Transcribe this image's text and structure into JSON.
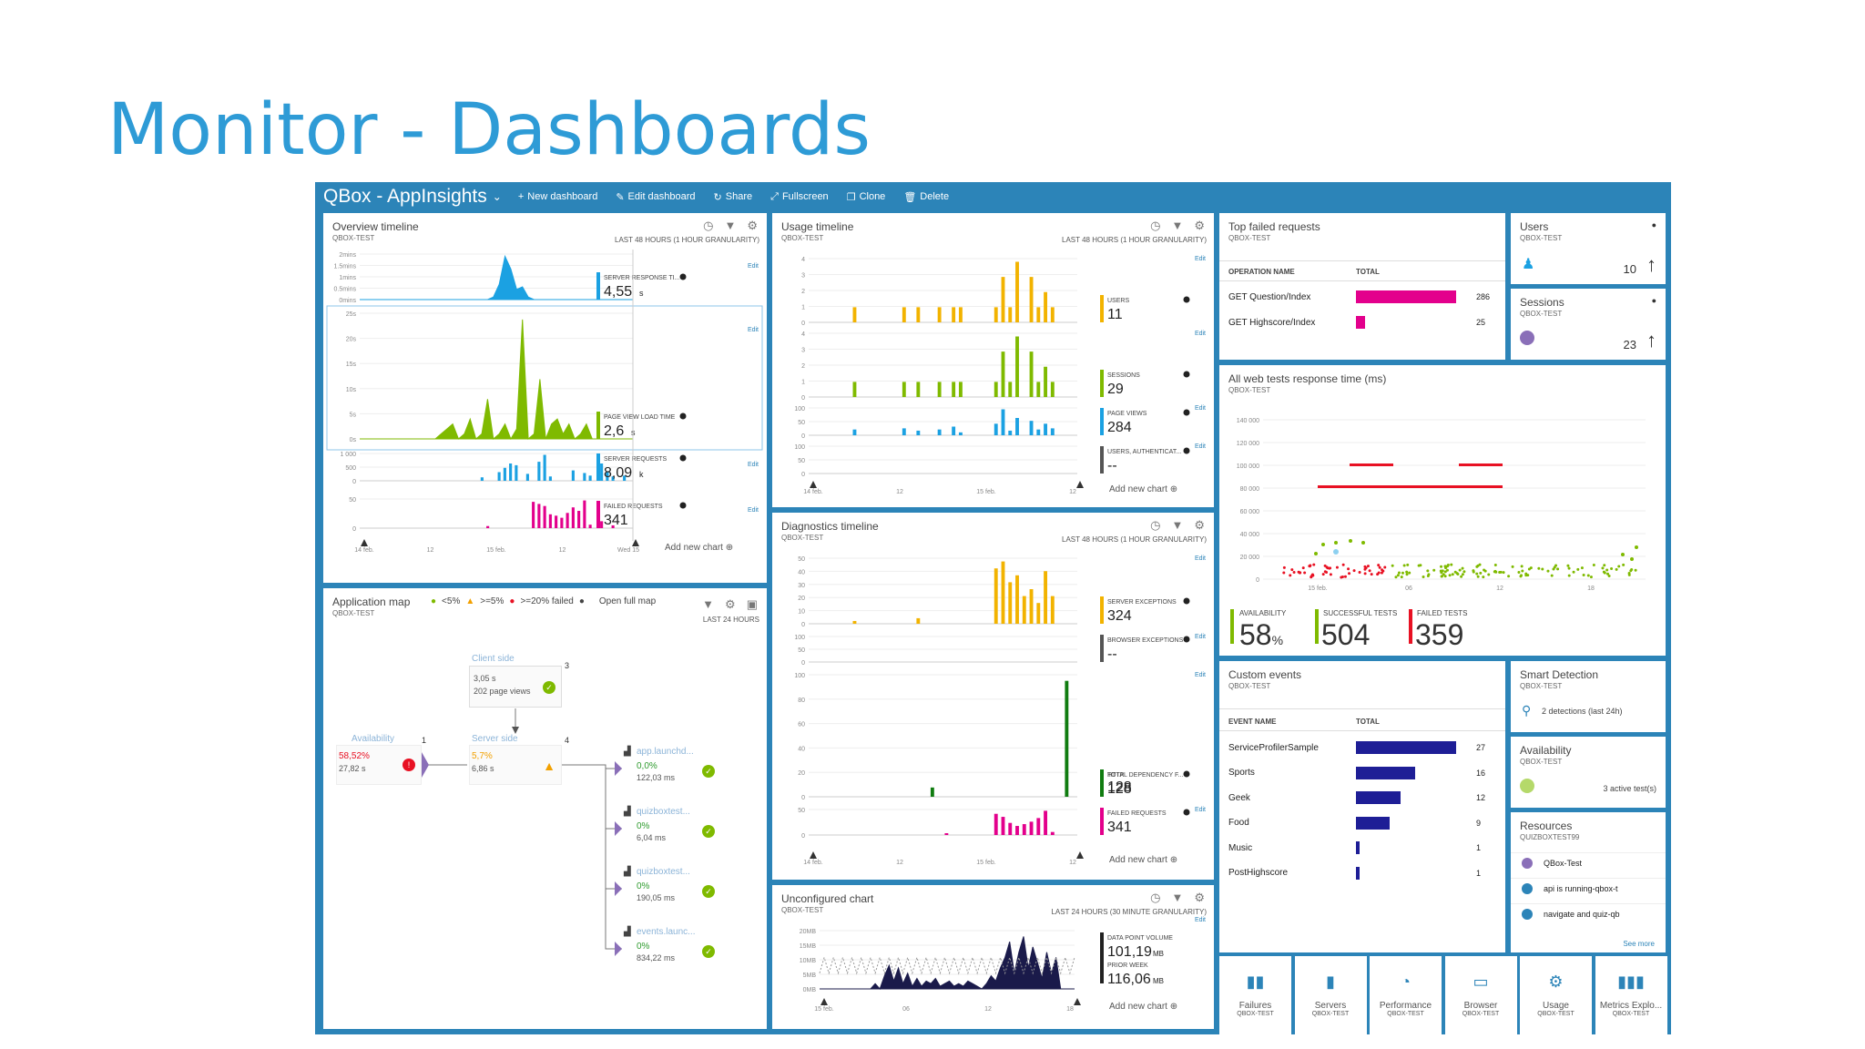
{
  "slide_title": "Monitor - Dashboards",
  "topbar": {
    "title": "QBox - AppInsights",
    "actions": [
      {
        "icon": "plus-icon",
        "label": "New dashboard"
      },
      {
        "icon": "pencil-icon",
        "label": "Edit dashboard"
      },
      {
        "icon": "share-icon",
        "label": "Share"
      },
      {
        "icon": "fullscreen-icon",
        "label": "Fullscreen"
      },
      {
        "icon": "clone-icon",
        "label": "Clone"
      },
      {
        "icon": "trash-icon",
        "label": "Delete"
      }
    ]
  },
  "colors": {
    "accent": "#2c84b8",
    "cyan": "#1ba1e2",
    "green": "#7fba00",
    "pink": "#e3008c",
    "gold": "#f2b300",
    "darkgreen": "#107c10",
    "navy": "#1e1e96",
    "red": "#e81123"
  },
  "overview": {
    "title": "Overview timeline",
    "subtitle": "QBOX-TEST",
    "range": "LAST 48 HOURS (1 HOUR GRANULARITY)",
    "edit": "Edit",
    "add_chart": "Add new chart",
    "charts": [
      {
        "ticks": [
          "2mins",
          "1.5mins",
          "1mins",
          "0.5mins",
          "0mins"
        ],
        "metric": "SERVER RESPONSE TI...",
        "value": "4,55",
        "unit": "s",
        "color": "#1ba1e2",
        "type": "area",
        "values": [
          0,
          0,
          0,
          0,
          0,
          0,
          0,
          0,
          0,
          0,
          0,
          0,
          0,
          0,
          0,
          0,
          0,
          0,
          0,
          0,
          0,
          0,
          0,
          0.1,
          0.6,
          1.7,
          1.2,
          0.4,
          0.5,
          0.1,
          0,
          0,
          0,
          0,
          0,
          0,
          0,
          0,
          0,
          0,
          0,
          0,
          0,
          0,
          0,
          0,
          0,
          0
        ]
      },
      {
        "ticks": [
          "25s",
          "20s",
          "15s",
          "10s",
          "5s",
          "0s"
        ],
        "metric": "PAGE VIEW LOAD TIME",
        "value": "2,6",
        "unit": "s",
        "color": "#7fba00",
        "type": "area",
        "values": [
          0,
          0,
          0,
          0,
          0,
          0,
          0,
          0,
          0,
          0,
          0,
          0,
          0,
          0,
          1,
          2,
          3,
          0,
          1,
          4,
          0,
          1,
          8,
          0,
          1,
          3,
          0,
          2,
          24,
          0,
          1,
          12,
          0,
          3,
          4,
          1,
          3,
          0,
          1,
          3,
          0,
          0,
          0,
          0,
          0,
          0,
          0,
          0
        ]
      },
      {
        "ticks": [
          "1 000",
          "500",
          "0"
        ],
        "metric": "SERVER REQUESTS",
        "value": "8,09",
        "unit": "k",
        "color": "#1ba1e2",
        "type": "bar",
        "values": [
          0,
          0,
          0,
          0,
          0,
          0,
          0,
          0,
          0,
          0,
          0,
          0,
          0,
          0,
          0,
          0,
          0,
          0,
          0,
          0,
          0,
          40,
          0,
          0,
          100,
          150,
          200,
          180,
          0,
          80,
          0,
          220,
          300,
          50,
          0,
          0,
          0,
          120,
          0,
          90,
          60,
          0,
          200,
          100,
          50,
          0,
          60,
          0
        ]
      },
      {
        "ticks": [
          "50",
          "0"
        ],
        "metric": "FAILED REQUESTS",
        "value": "341",
        "unit": "",
        "color": "#e3008c",
        "type": "bar",
        "values": [
          0,
          0,
          0,
          0,
          0,
          0,
          0,
          0,
          0,
          0,
          0,
          0,
          0,
          0,
          0,
          0,
          0,
          0,
          0,
          0,
          0,
          0,
          3,
          0,
          0,
          0,
          0,
          0,
          0,
          0,
          38,
          35,
          32,
          20,
          18,
          15,
          22,
          30,
          25,
          40,
          5,
          0,
          10,
          0,
          4,
          0,
          0,
          0
        ]
      }
    ],
    "xaxis": [
      "14 feb.",
      "12",
      "15 feb.",
      "12",
      "Wed 15"
    ]
  },
  "usage": {
    "title": "Usage timeline",
    "subtitle": "QBOX-TEST",
    "range": "LAST 48 HOURS (1 HOUR GRANULARITY)",
    "edit": "Edit",
    "add_chart": "Add new chart",
    "charts": [
      {
        "ticks": [
          "4",
          "3",
          "2",
          "1",
          "0"
        ],
        "metric": "USERS",
        "value": "11",
        "unit": "",
        "color": "#f2b300",
        "values": [
          0,
          0,
          0,
          0,
          0,
          0,
          1,
          0,
          0,
          0,
          0,
          0,
          0,
          1,
          0,
          1,
          0,
          0,
          1,
          0,
          1,
          1,
          0,
          0,
          0,
          0,
          1,
          3,
          1,
          4,
          0,
          3,
          1,
          2,
          1,
          0,
          0,
          0
        ]
      },
      {
        "ticks": [
          "4",
          "3",
          "2",
          "1",
          "0"
        ],
        "metric": "SESSIONS",
        "value": "29",
        "unit": "",
        "color": "#7fba00",
        "values": [
          0,
          0,
          0,
          0,
          0,
          0,
          1,
          0,
          0,
          0,
          0,
          0,
          0,
          1,
          0,
          1,
          0,
          0,
          1,
          0,
          1,
          1,
          0,
          0,
          0,
          0,
          1,
          3,
          1,
          4,
          0,
          3,
          1,
          2,
          1,
          0,
          0,
          0
        ]
      },
      {
        "ticks": [
          "100",
          "50",
          "0"
        ],
        "metric": "PAGE VIEWS",
        "value": "284",
        "unit": "",
        "color": "#1ba1e2",
        "values": [
          0,
          0,
          0,
          0,
          0,
          0,
          10,
          0,
          0,
          0,
          0,
          0,
          0,
          12,
          0,
          8,
          0,
          0,
          10,
          0,
          15,
          5,
          0,
          0,
          0,
          0,
          20,
          45,
          8,
          30,
          0,
          25,
          10,
          20,
          12,
          0,
          0,
          0
        ]
      },
      {
        "ticks": [
          "100",
          "50",
          "0"
        ],
        "metric": "USERS, AUTHENTICAT...",
        "value": "--",
        "unit": "",
        "color": "#555555",
        "values": []
      }
    ],
    "xaxis": [
      "14 feb.",
      "12",
      "15 feb.",
      "12"
    ]
  },
  "top_failed": {
    "title": "Top failed requests",
    "subtitle": "QBOX-TEST",
    "col1": "OPERATION NAME",
    "col2": "TOTAL",
    "rows": [
      {
        "name": "GET Question/Index",
        "total": "286",
        "value": 286
      },
      {
        "name": "GET Highscore/Index",
        "total": "25",
        "value": 25
      }
    ]
  },
  "users_tile": {
    "title": "Users",
    "subtitle": "QBOX-TEST",
    "value": "10"
  },
  "sessions_tile": {
    "title": "Sessions",
    "subtitle": "QBOX-TEST",
    "value": "23"
  },
  "webtests": {
    "title": "All web tests response time (ms)",
    "subtitle": "QBOX-TEST",
    "ticks": [
      "140 000",
      "120 000",
      "100 000",
      "80 000",
      "60 000",
      "40 000",
      "20 000",
      "0"
    ],
    "xaxis": [
      "15 feb.",
      "06",
      "12",
      "18"
    ],
    "availability_label": "AVAILABILITY",
    "availability": "58",
    "availability_unit": "%",
    "successful_label": "SUCCESSFUL TESTS",
    "successful": "504",
    "failed_label": "FAILED TESTS",
    "failed": "359"
  },
  "appmap": {
    "title": "Application map",
    "subtitle": "QBOX-TEST",
    "legend": [
      "<5%",
      ">=5%",
      ">=20% failed"
    ],
    "open_full": "Open full map",
    "range": "LAST 24 HOURS",
    "client": {
      "label": "Client side",
      "l1": "3,05 s",
      "l2": "202 page views"
    },
    "availability": {
      "label": "Availability",
      "l1": "58,52%",
      "l2": "27,82 s"
    },
    "server": {
      "label": "Server side",
      "l1": "5,7%",
      "l2": "6,86 s"
    },
    "deps": [
      {
        "label": "app.launchd...",
        "l1": "0,0%",
        "l2": "122,03 ms"
      },
      {
        "label": "quizboxtest...",
        "l1": "0%",
        "l2": "6,04 ms"
      },
      {
        "label": "quizboxtest...",
        "l1": "0%",
        "l2": "190,05 ms"
      },
      {
        "label": "events.launc...",
        "l1": "0%",
        "l2": "834,22 ms"
      }
    ],
    "counts": [
      "1",
      "3",
      "4"
    ]
  },
  "diagnostics": {
    "title": "Diagnostics timeline",
    "subtitle": "QBOX-TEST",
    "range": "LAST 48 HOURS (1 HOUR GRANULARITY)",
    "edit": "Edit",
    "add_chart": "Add new chart",
    "charts": [
      {
        "ticks": [
          "50",
          "40",
          "30",
          "20",
          "10",
          "0"
        ],
        "metric": "SERVER EXCEPTIONS",
        "value": "324",
        "unit": "",
        "color": "#f2b300",
        "values": [
          0,
          0,
          0,
          0,
          0,
          0,
          2,
          0,
          0,
          0,
          0,
          0,
          0,
          0,
          0,
          4,
          0,
          0,
          0,
          0,
          0,
          0,
          0,
          0,
          0,
          0,
          40,
          45,
          30,
          35,
          20,
          25,
          15,
          38,
          20,
          0,
          0,
          0
        ]
      },
      {
        "ticks": [
          "100",
          "50",
          "0"
        ],
        "metric": "BROWSER EXCEPTIONS",
        "value": "--",
        "unit": "",
        "color": "#555555",
        "values": []
      },
      {
        "ticks": [
          "100",
          "80",
          "60",
          "40",
          "20",
          "0"
        ],
        "metric": "TOTAL DEPENDENCY F...",
        "value": "128",
        "unit": "",
        "color": "#107c10",
        "values": [
          0,
          0,
          0,
          0,
          0,
          0,
          0,
          0,
          0,
          0,
          0,
          0,
          0,
          0,
          0,
          0,
          0,
          8,
          0,
          0,
          0,
          0,
          0,
          0,
          0,
          0,
          0,
          0,
          0,
          0,
          0,
          0,
          0,
          0,
          0,
          0,
          100,
          0
        ],
        "metric2": "HTTP",
        "value2": "128"
      },
      {
        "ticks": [
          "50",
          "0"
        ],
        "metric": "FAILED REQUESTS",
        "value": "341",
        "unit": "",
        "color": "#e3008c",
        "values": [
          0,
          0,
          0,
          0,
          0,
          0,
          0,
          0,
          0,
          0,
          0,
          0,
          0,
          0,
          0,
          0,
          0,
          0,
          0,
          3,
          0,
          0,
          0,
          0,
          0,
          0,
          35,
          30,
          20,
          15,
          18,
          22,
          28,
          40,
          5,
          0,
          0,
          0
        ]
      }
    ],
    "xaxis": [
      "14 feb.",
      "12",
      "15 feb.",
      "12"
    ]
  },
  "custom_events": {
    "title": "Custom events",
    "subtitle": "QBOX-TEST",
    "col1": "EVENT NAME",
    "col2": "TOTAL",
    "rows": [
      {
        "name": "ServiceProfilerSample",
        "total": "27",
        "value": 27
      },
      {
        "name": "Sports",
        "total": "16",
        "value": 16
      },
      {
        "name": "Geek",
        "total": "12",
        "value": 12
      },
      {
        "name": "Food",
        "total": "9",
        "value": 9
      },
      {
        "name": "Music",
        "total": "1",
        "value": 1
      },
      {
        "name": "PostHighscore",
        "total": "1",
        "value": 1
      }
    ]
  },
  "smart_detection": {
    "title": "Smart Detection",
    "subtitle": "QBOX-TEST",
    "text": "2 detections (last 24h)"
  },
  "availability_tile": {
    "title": "Availability",
    "subtitle": "QBOX-TEST",
    "text": "3 active test(s)"
  },
  "resources": {
    "title": "Resources",
    "subtitle": "QUIZBOXTEST99",
    "items": [
      "QBox-Test",
      "api is running-qbox-t",
      "navigate and quiz-qb"
    ],
    "see_more": "See more"
  },
  "unconfigured": {
    "title": "Unconfigured chart",
    "subtitle": "QBOX-TEST",
    "range": "LAST 24 HOURS (30 MINUTE GRANULARITY)",
    "edit": "Edit",
    "add_chart": "Add new chart",
    "ticks": [
      "20MB",
      "15MB",
      "10MB",
      "5MB",
      "0MB"
    ],
    "metric": "DATA POINT VOLUME",
    "value": "101,19",
    "unit": "MB",
    "metric2": "PRIOR WEEK",
    "value2": "116,06",
    "unit2": "MB",
    "xaxis": [
      "15 feb.",
      "06",
      "12",
      "18"
    ],
    "values": [
      0,
      0,
      0,
      0,
      0,
      0,
      0,
      0,
      0,
      0,
      0,
      0,
      2,
      0,
      5,
      9,
      3,
      8,
      2,
      6,
      1,
      4,
      1,
      3,
      2,
      4,
      1,
      2,
      3,
      1,
      2,
      1,
      3,
      2,
      1,
      0,
      2,
      5,
      3,
      8,
      12,
      18,
      6,
      14,
      20,
      8,
      16,
      10,
      4,
      14,
      6,
      12,
      0,
      0,
      0,
      0
    ]
  },
  "bottom_tiles": [
    {
      "label": "Failures",
      "sub": "QBOX-TEST",
      "icon": "failures-icon"
    },
    {
      "label": "Servers",
      "sub": "QBOX-TEST",
      "icon": "servers-icon"
    },
    {
      "label": "Performance",
      "sub": "QBOX-TEST",
      "icon": "performance-icon"
    },
    {
      "label": "Browser",
      "sub": "QBOX-TEST",
      "icon": "browser-icon"
    },
    {
      "label": "Usage",
      "sub": "QBOX-TEST",
      "icon": "usage-icon"
    },
    {
      "label": "Metrics Explo...",
      "sub": "QBOX-TEST",
      "icon": "metrics-icon"
    }
  ]
}
